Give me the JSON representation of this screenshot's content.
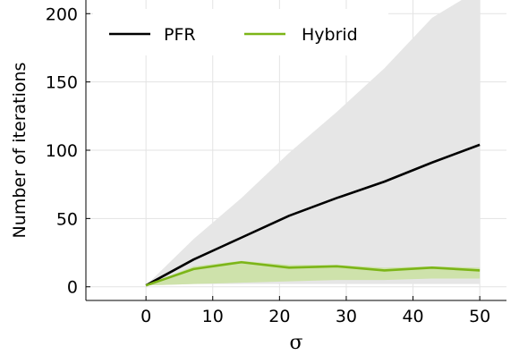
{
  "chart_data": {
    "type": "line",
    "xlabel": "σ",
    "ylabel": "Number of iterations",
    "xlim": [
      -9,
      54
    ],
    "ylim": [
      -10,
      210
    ],
    "xticks": [
      0,
      10,
      20,
      30,
      40,
      50
    ],
    "yticks": [
      0,
      50,
      100,
      150,
      200
    ],
    "grid": true,
    "legend_position": "top-left",
    "series": [
      {
        "name": "PFR",
        "color": "#000000",
        "band_color": "#e6e6e6",
        "x": [
          0,
          7.14,
          14.29,
          21.43,
          28.57,
          35.71,
          42.86,
          50
        ],
        "y": [
          1,
          20,
          36,
          52,
          65,
          77,
          91,
          104
        ],
        "lower": [
          1,
          2,
          2,
          2,
          2,
          2,
          2,
          2
        ],
        "upper": [
          1,
          35,
          65,
          98,
          128,
          160,
          197,
          218
        ]
      },
      {
        "name": "Hybrid",
        "color": "#7cb518",
        "band_color": "#c9e0a0",
        "x": [
          0,
          7.14,
          14.29,
          21.43,
          28.57,
          35.71,
          42.86,
          50
        ],
        "y": [
          1,
          13,
          18,
          14,
          15,
          12,
          14,
          12
        ],
        "lower": [
          1,
          2,
          3,
          4,
          5,
          5,
          6,
          6
        ],
        "upper": [
          1,
          15,
          19,
          16,
          16,
          14,
          15,
          14
        ]
      }
    ]
  }
}
